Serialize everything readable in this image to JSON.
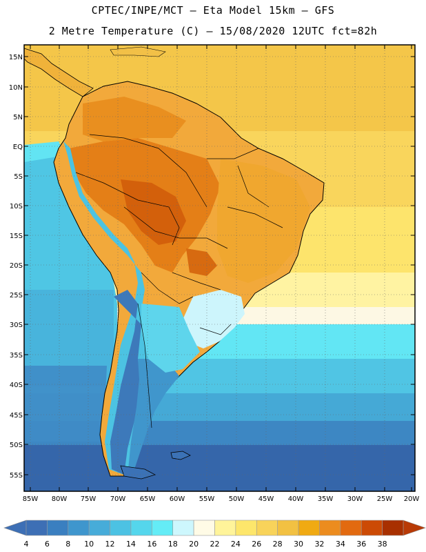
{
  "title": {
    "line1": "CPTEC/INPE/MCT –  Eta Model 15km – GFS",
    "line2": "2 Metre Temperature (C) – 15/08/2020 12UTC fct=82h"
  },
  "lat_labels": [
    "15N",
    "10N",
    "5N",
    "EQ",
    "5S",
    "10S",
    "15S",
    "20S",
    "25S",
    "30S",
    "35S",
    "40S",
    "45S",
    "50S",
    "55S"
  ],
  "lon_labels": [
    "85W",
    "80W",
    "75W",
    "70W",
    "65W",
    "60W",
    "55W",
    "50W",
    "45W",
    "40W",
    "35W",
    "30W",
    "25W",
    "20W"
  ],
  "colorbar": {
    "labels": [
      "4",
      "6",
      "8",
      "10",
      "12",
      "14",
      "16",
      "18",
      "20",
      "22",
      "24",
      "26",
      "28",
      "30",
      "32",
      "34",
      "36",
      "38"
    ],
    "colors": [
      "#3d6fb5",
      "#3a7fc0",
      "#3f96cd",
      "#47acd9",
      "#4cc2e3",
      "#55d6ec",
      "#64ecf6",
      "#cdf7fd",
      "#fffbe6",
      "#fff49a",
      "#fde66b",
      "#f8d35a",
      "#f2c142",
      "#f0aa12",
      "#ec8c1e",
      "#e26a10",
      "#cc4a05",
      "#a83000"
    ],
    "under_color": "#3d6fb5",
    "over_color": "#b83a06"
  },
  "map_colors": {
    "ocean_deep_south": "#3365a8",
    "ocean_mid_south": "#3d84c2",
    "ocean_cool": "#4cb5dc",
    "ocean_cyan": "#57d2ea",
    "ocean_warm_yellow": "#fde66b",
    "ocean_tropical": "#f6cd52",
    "land_hot": "#e37c15",
    "land_very_hot": "#d5600c",
    "land_warm": "#f2aa2a",
    "andes_cold": "#3d77b8",
    "patagonia": "#3f8fc8",
    "coast_line": "#000000"
  }
}
